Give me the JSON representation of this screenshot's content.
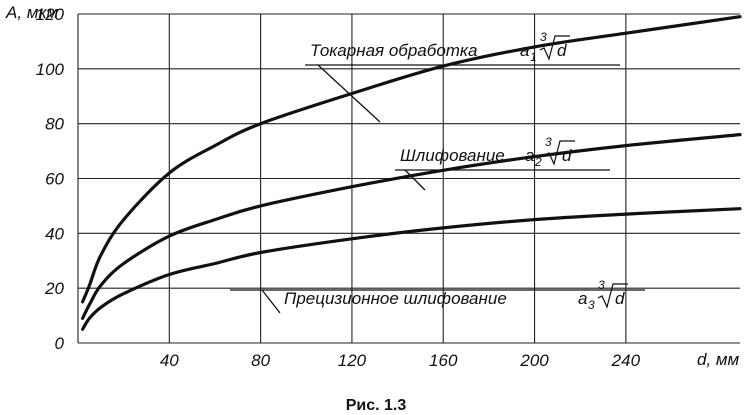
{
  "chart_data": {
    "type": "line",
    "title": "",
    "caption": "Рис. 1.3",
    "ylabel": "А, мкм",
    "xlabel": "d, мм",
    "xlim": [
      0,
      290
    ],
    "ylim": [
      0,
      120
    ],
    "x_ticks": [
      40,
      80,
      120,
      160,
      200,
      240
    ],
    "y_ticks": [
      0,
      20,
      40,
      60,
      80,
      100,
      120
    ],
    "grid": true,
    "series": [
      {
        "name": "Токарная обработка",
        "coef_text": "a",
        "coef_sub": "1",
        "root_index": "3",
        "radicand": "d",
        "x": [
          2,
          5,
          10,
          20,
          40,
          60,
          80,
          120,
          160,
          200,
          240,
          290
        ],
        "values": [
          15,
          21,
          32,
          45,
          62,
          72,
          80,
          91,
          101,
          108,
          113,
          119
        ]
      },
      {
        "name": "Шлифование",
        "coef_text": "a",
        "coef_sub": "2",
        "root_index": "3",
        "radicand": "d",
        "x": [
          2,
          5,
          10,
          20,
          40,
          60,
          80,
          120,
          160,
          200,
          240,
          290
        ],
        "values": [
          9,
          14,
          21,
          29,
          39,
          45,
          50,
          57,
          63,
          68,
          72,
          76
        ]
      },
      {
        "name": "Прецизионное шлифование",
        "coef_text": "a",
        "coef_sub": "3",
        "root_index": "3",
        "radicand": "d",
        "x": [
          2,
          5,
          10,
          20,
          40,
          60,
          80,
          120,
          160,
          200,
          240,
          290
        ],
        "values": [
          5,
          9,
          13,
          18,
          25,
          29,
          33,
          38,
          42,
          45,
          47,
          49
        ]
      }
    ]
  }
}
